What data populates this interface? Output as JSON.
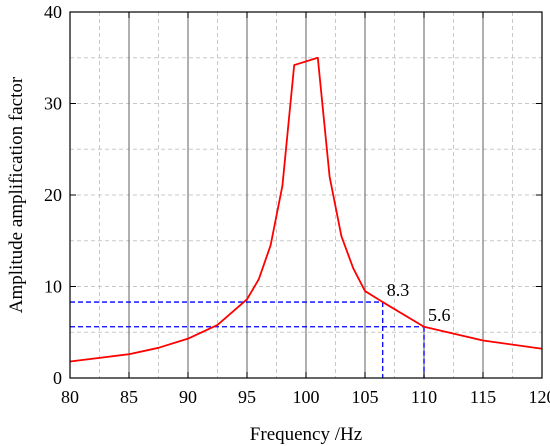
{
  "chart_data": {
    "type": "line",
    "title": "",
    "xlabel": "Frequency /Hz",
    "ylabel": "Amplitude amplification factor",
    "xlim": [
      80,
      120
    ],
    "ylim": [
      0,
      40
    ],
    "x_ticks": [
      80,
      85,
      90,
      95,
      100,
      105,
      110,
      115,
      120
    ],
    "y_ticks": [
      0,
      10,
      20,
      30,
      40
    ],
    "x_tick_labels": [
      "80",
      "85",
      "90",
      "95",
      "100",
      "105",
      "110",
      "115",
      "120"
    ],
    "y_tick_labels": [
      "0",
      "10",
      "20",
      "30",
      "40"
    ],
    "grid": "major solid gray vertical lines; dashed gray minor grid",
    "legend": "none",
    "series": [
      {
        "color": "#ff0000",
        "x": [
          80,
          82.5,
          85,
          87.5,
          90,
          92.5,
          95,
          96,
          97,
          98,
          99,
          101,
          102,
          103,
          104,
          105,
          106.5,
          110,
          115,
          120
        ],
        "y": [
          1.8,
          2.2,
          2.6,
          3.3,
          4.3,
          5.8,
          8.6,
          10.8,
          14.5,
          21.0,
          34.2,
          35.0,
          22.0,
          15.5,
          12.0,
          9.5,
          8.3,
          5.6,
          4.1,
          3.2
        ]
      }
    ],
    "annotations": [
      {
        "x": 106.5,
        "y": 8.3,
        "text": "8.3",
        "color": "#0000ff",
        "style": "dashed"
      },
      {
        "x": 110,
        "y": 5.6,
        "text": "5.6",
        "color": "#0000ff",
        "style": "dashed"
      }
    ]
  }
}
